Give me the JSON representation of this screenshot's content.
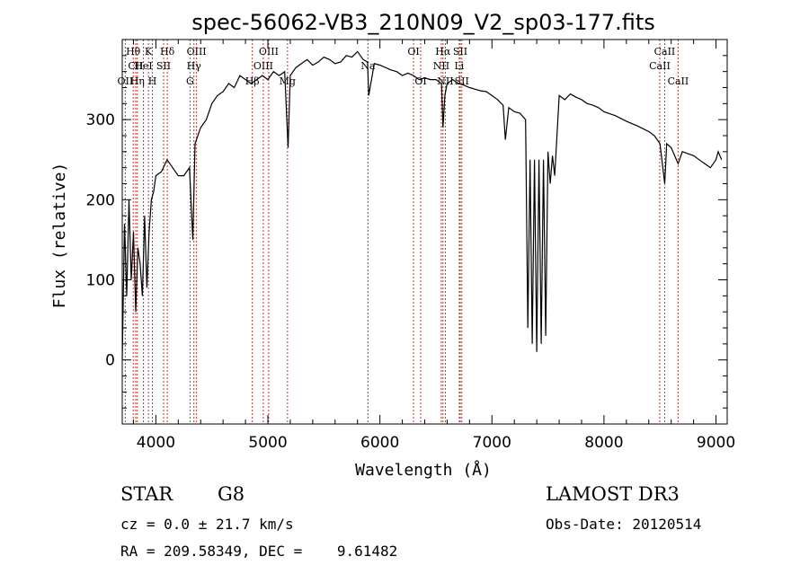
{
  "chart_data": {
    "type": "line",
    "title": "spec-56062-VB3_210N09_V2_sp03-177.fits",
    "xlabel": "Wavelength (Å)",
    "ylabel": "Flux (relative)",
    "xlim": [
      3700,
      9100
    ],
    "ylim": [
      -80,
      400
    ],
    "xticks": [
      4000,
      5000,
      6000,
      7000,
      8000,
      9000
    ],
    "yticks": [
      0,
      100,
      200,
      300
    ],
    "grid": false,
    "series": [
      {
        "x": [
          3700,
          3720,
          3740,
          3760,
          3780,
          3800,
          3820,
          3840,
          3860,
          3880,
          3900,
          3920,
          3940,
          3960,
          3980,
          4000,
          4050,
          4100,
          4150,
          4200,
          4250,
          4300,
          4330,
          4350,
          4400,
          4450,
          4500,
          4550,
          4600,
          4650,
          4700,
          4750,
          4800,
          4850,
          4900,
          4950,
          5000,
          5050,
          5100,
          5150,
          5180,
          5200,
          5250,
          5300,
          5350,
          5400,
          5450,
          5500,
          5550,
          5600,
          5650,
          5700,
          5750,
          5800,
          5850,
          5890,
          5900,
          5950,
          6000,
          6050,
          6100,
          6150,
          6200,
          6250,
          6300,
          6350,
          6400,
          6450,
          6500,
          6550,
          6563,
          6580,
          6600,
          6650,
          6700,
          6750,
          6800,
          6850,
          6900,
          6950,
          7000,
          7050,
          7100,
          7120,
          7150,
          7200,
          7250,
          7300,
          7320,
          7340,
          7360,
          7380,
          7400,
          7420,
          7440,
          7460,
          7480,
          7500,
          7520,
          7540,
          7560,
          7600,
          7650,
          7700,
          7750,
          7800,
          7850,
          7900,
          7950,
          8000,
          8100,
          8200,
          8300,
          8400,
          8450,
          8500,
          8542,
          8560,
          8600,
          8662,
          8700,
          8800,
          8850,
          8900,
          8950,
          9000,
          9020,
          9050
        ],
        "values": [
          0,
          170,
          80,
          200,
          100,
          160,
          60,
          140,
          120,
          80,
          180,
          90,
          160,
          200,
          210,
          230,
          235,
          250,
          240,
          230,
          230,
          240,
          150,
          270,
          290,
          300,
          320,
          330,
          335,
          345,
          340,
          355,
          350,
          345,
          350,
          355,
          350,
          360,
          355,
          360,
          265,
          355,
          365,
          370,
          375,
          368,
          372,
          378,
          375,
          370,
          372,
          380,
          378,
          385,
          375,
          372,
          330,
          370,
          368,
          365,
          362,
          360,
          355,
          358,
          355,
          350,
          352,
          350,
          350,
          345,
          290,
          330,
          345,
          350,
          345,
          343,
          340,
          338,
          336,
          335,
          330,
          325,
          318,
          275,
          315,
          310,
          308,
          300,
          40,
          250,
          20,
          250,
          10,
          250,
          20,
          250,
          30,
          260,
          220,
          255,
          230,
          330,
          325,
          332,
          328,
          325,
          320,
          318,
          315,
          310,
          305,
          298,
          292,
          285,
          280,
          270,
          220,
          270,
          265,
          245,
          260,
          255,
          250,
          245,
          240,
          250,
          260,
          250
        ]
      }
    ],
    "spectral_lines": [
      {
        "label": "Hθ",
        "wavelength": 3798,
        "row": 1
      },
      {
        "label": "CII",
        "wavelength": 3820,
        "row": 2
      },
      {
        "label": "OII",
        "wavelength": 3727,
        "row": 3
      },
      {
        "label": "Hη",
        "wavelength": 3835,
        "row": 3
      },
      {
        "label": "K",
        "wavelength": 3934,
        "row": 1
      },
      {
        "label": "HeI",
        "wavelength": 3889,
        "row": 2
      },
      {
        "label": "H",
        "wavelength": 3969,
        "row": 3
      },
      {
        "label": "Hδ",
        "wavelength": 4102,
        "row": 1
      },
      {
        "label": "SII",
        "wavelength": 4069,
        "row": 2
      },
      {
        "label": "OIII",
        "wavelength": 4363,
        "row": 1
      },
      {
        "label": "Hγ",
        "wavelength": 4340,
        "row": 2
      },
      {
        "label": "G",
        "wavelength": 4305,
        "row": 3
      },
      {
        "label": "OIII",
        "wavelength": 5007,
        "row": 1
      },
      {
        "label": "OIII",
        "wavelength": 4959,
        "row": 2
      },
      {
        "label": "Hβ",
        "wavelength": 4861,
        "row": 3
      },
      {
        "label": "Mg",
        "wavelength": 5175,
        "row": 3
      },
      {
        "label": "Na",
        "wavelength": 5893,
        "row": 2
      },
      {
        "label": "OI",
        "wavelength": 6300,
        "row": 1
      },
      {
        "label": "OI",
        "wavelength": 6364,
        "row": 3
      },
      {
        "label": "Hα",
        "wavelength": 6563,
        "row": 1
      },
      {
        "label": "SII",
        "wavelength": 6717,
        "row": 1
      },
      {
        "label": "NII",
        "wavelength": 6548,
        "row": 2
      },
      {
        "label": "Li",
        "wavelength": 6708,
        "row": 2
      },
      {
        "label": "NII",
        "wavelength": 6584,
        "row": 3
      },
      {
        "label": "SII",
        "wavelength": 6731,
        "row": 3
      },
      {
        "label": "CaII",
        "wavelength": 8542,
        "row": 1
      },
      {
        "label": "CaII",
        "wavelength": 8498,
        "row": 2
      },
      {
        "label": "CaII",
        "wavelength": 8662,
        "row": 3
      }
    ]
  },
  "info": {
    "class": "STAR",
    "subclass": "G8",
    "survey": "LAMOST DR3",
    "cz": "cz = 0.0 ± 21.7 km/s",
    "obs_date": "Obs-Date: 20120514",
    "coords": "RA = 209.58349, DEC =    9.61482"
  }
}
